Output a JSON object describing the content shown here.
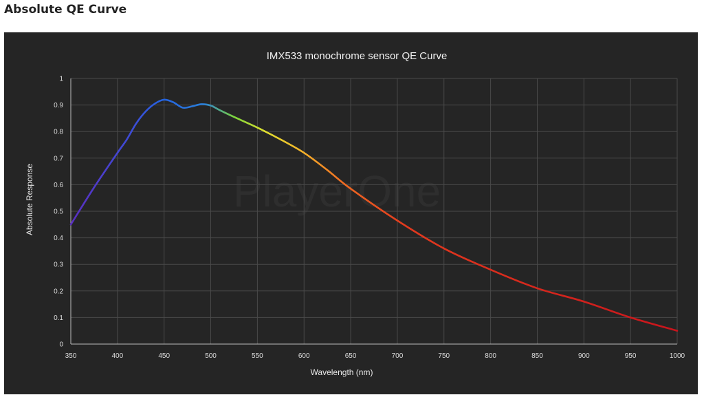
{
  "page": {
    "heading": "Absolute QE Curve"
  },
  "colors": {
    "panel_background": "#252525",
    "grid": "#4a4a4a",
    "text": "#dddddd"
  },
  "chart_data": {
    "type": "line",
    "title": "IMX533 monochrome sensor QE Curve",
    "xlabel": "Wavelength (nm)",
    "ylabel": "Absolute Response",
    "xlim": [
      350,
      1000
    ],
    "ylim": [
      0,
      1
    ],
    "x_ticks": [
      "350",
      "400",
      "450",
      "500",
      "550",
      "600",
      "650",
      "700",
      "750",
      "800",
      "850",
      "900",
      "950",
      "1000"
    ],
    "y_ticks": [
      "0",
      "0.1",
      "0.2",
      "0.3",
      "0.4",
      "0.5",
      "0.6",
      "0.7",
      "0.8",
      "0.9",
      "1"
    ],
    "grid": true,
    "watermark": "PlayerOne",
    "line_color": "spectral gradient (violet → blue → green → yellow → orange → red)",
    "x": [
      350,
      375,
      400,
      410,
      420,
      430,
      440,
      450,
      460,
      470,
      480,
      490,
      500,
      510,
      525,
      550,
      575,
      600,
      625,
      650,
      700,
      750,
      800,
      850,
      900,
      950,
      1000
    ],
    "y": [
      0.45,
      0.59,
      0.72,
      0.77,
      0.83,
      0.875,
      0.905,
      0.92,
      0.91,
      0.89,
      0.895,
      0.903,
      0.898,
      0.88,
      0.855,
      0.815,
      0.77,
      0.72,
      0.655,
      0.585,
      0.465,
      0.36,
      0.28,
      0.21,
      0.16,
      0.1,
      0.05
    ]
  }
}
